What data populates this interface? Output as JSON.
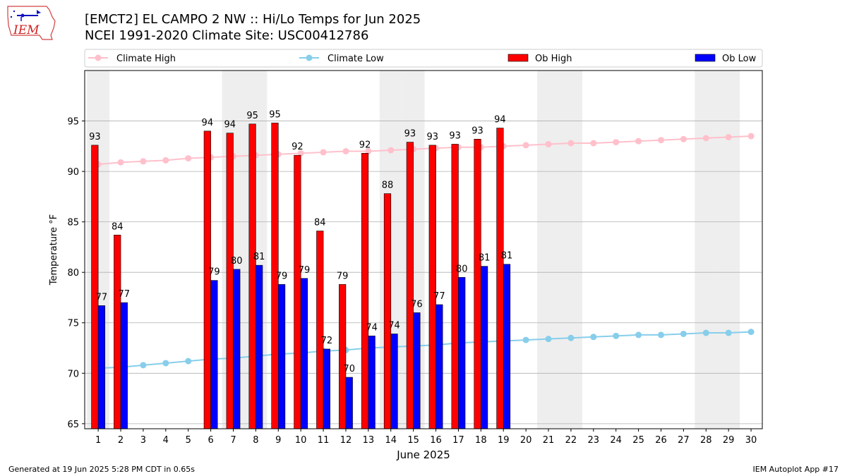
{
  "header": {
    "title_line1": "[EMCT2] EL CAMPO 2 NW :: Hi/Lo Temps for Jun 2025",
    "title_line2": "NCEI 1991-2020 Climate Site: USC00412786",
    "logo_text": "IEM"
  },
  "footer": {
    "left": "Generated at 19 Jun 2025 5:28 PM CDT in 0.65s",
    "right": "IEM Autoplot App #17"
  },
  "colors": {
    "ob_high": "#ff0000",
    "ob_low": "#0000ff",
    "climate_high": "#ffc0cb",
    "climate_low": "#87ceeb",
    "weekend_shade": "#eeeeee",
    "grid": "#b0b0b0"
  },
  "chart_data": {
    "type": "bar",
    "xlabel": "June 2025",
    "ylabel": "Temperature °F",
    "ylim": [
      64.5,
      100
    ],
    "yticks": [
      65,
      70,
      75,
      80,
      85,
      90,
      95
    ],
    "grid": "horizontal",
    "legend_position": "top",
    "categories": [
      "1",
      "2",
      "3",
      "4",
      "5",
      "6",
      "7",
      "8",
      "9",
      "10",
      "11",
      "12",
      "13",
      "14",
      "15",
      "16",
      "17",
      "18",
      "19",
      "20",
      "21",
      "22",
      "23",
      "24",
      "25",
      "26",
      "27",
      "28",
      "29",
      "30"
    ],
    "shaded_days": [
      1,
      7,
      8,
      14,
      15,
      21,
      22,
      28,
      29
    ],
    "series": [
      {
        "name": "Climate High",
        "kind": "line",
        "values": [
          90.7,
          90.9,
          91.0,
          91.1,
          91.3,
          91.4,
          91.5,
          91.6,
          91.7,
          91.8,
          91.9,
          92.0,
          92.0,
          92.1,
          92.2,
          92.3,
          92.4,
          92.4,
          92.5,
          92.6,
          92.7,
          92.8,
          92.8,
          92.9,
          93.0,
          93.1,
          93.2,
          93.3,
          93.4,
          93.5
        ]
      },
      {
        "name": "Climate Low",
        "kind": "line",
        "values": [
          70.5,
          70.6,
          70.8,
          71.0,
          71.2,
          71.4,
          71.5,
          71.7,
          71.9,
          72.0,
          72.2,
          72.3,
          72.5,
          72.6,
          72.7,
          72.8,
          73.0,
          73.1,
          73.2,
          73.3,
          73.4,
          73.5,
          73.6,
          73.7,
          73.8,
          73.8,
          73.9,
          74.0,
          74.0,
          74.1
        ]
      },
      {
        "name": "Ob High",
        "kind": "bar",
        "values": [
          92.6,
          83.7,
          null,
          null,
          null,
          94.0,
          93.8,
          94.7,
          94.8,
          91.6,
          84.1,
          78.8,
          91.8,
          87.8,
          92.9,
          92.6,
          92.7,
          93.2,
          94.3,
          null,
          null,
          null,
          null,
          null,
          null,
          null,
          null,
          null,
          null,
          null
        ],
        "labels": [
          "93",
          "84",
          "",
          "",
          "",
          "94",
          "94",
          "95",
          "95",
          "92",
          "84",
          "79",
          "92",
          "88",
          "93",
          "93",
          "93",
          "93",
          "94",
          "",
          "",
          "",
          "",
          "",
          "",
          "",
          "",
          "",
          "",
          ""
        ]
      },
      {
        "name": "Ob Low",
        "kind": "bar",
        "values": [
          76.7,
          77.0,
          null,
          null,
          null,
          79.2,
          80.3,
          80.7,
          78.8,
          79.4,
          72.4,
          69.6,
          73.7,
          73.9,
          76.0,
          76.8,
          79.5,
          80.6,
          80.8,
          null,
          null,
          null,
          null,
          null,
          null,
          null,
          null,
          null,
          null,
          null
        ],
        "labels": [
          "77",
          "77",
          "",
          "",
          "",
          "79",
          "80",
          "81",
          "79",
          "79",
          "72",
          "70",
          "74",
          "74",
          "76",
          "77",
          "80",
          "81",
          "81",
          "",
          "",
          "",
          "",
          "",
          "",
          "",
          "",
          "",
          "",
          ""
        ]
      }
    ]
  }
}
